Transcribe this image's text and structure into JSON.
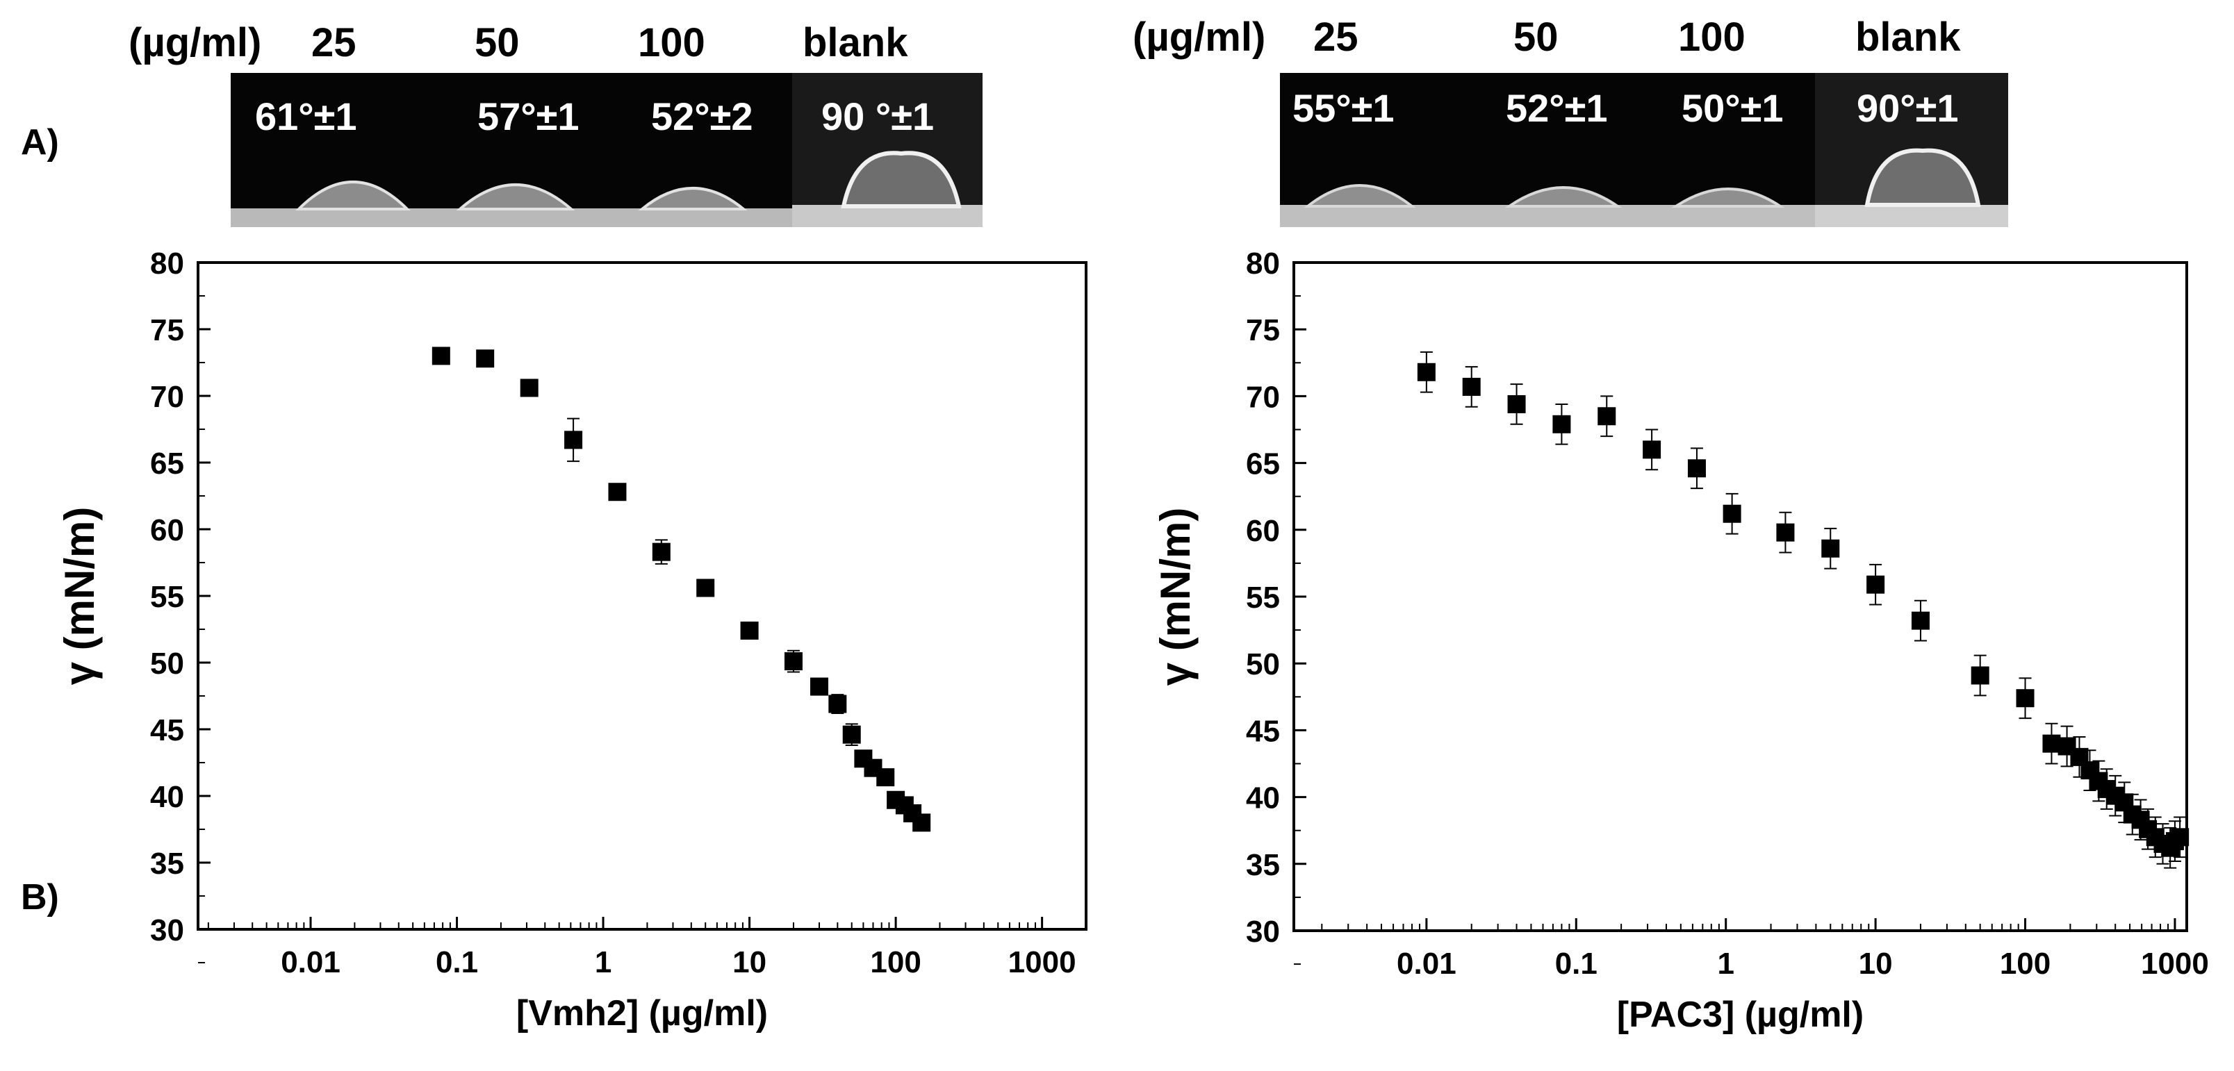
{
  "panel_labels": {
    "a": "A)",
    "b": "B)"
  },
  "droplets": [
    {
      "conc_unit": "(µg/ml)",
      "labels": [
        "25",
        "50",
        "100",
        "blank"
      ],
      "angles": [
        "61°±1",
        "57°±1",
        "52°±2",
        "90 °±1"
      ]
    },
    {
      "conc_unit": "(µg/ml)",
      "labels": [
        "25",
        "50",
        "100",
        "blank"
      ],
      "angles": [
        "55°±1",
        "52°±1",
        "50°±1",
        "90°±1"
      ]
    }
  ],
  "chart_data": [
    {
      "type": "scatter",
      "title": "",
      "xlabel": "[Vmh2] (µg/ml)",
      "ylabel": "γ (mN/m)",
      "xscale": "log",
      "xlim": [
        0.0017,
        2000
      ],
      "ylim": [
        30,
        80
      ],
      "xticks": [
        0.01,
        0.1,
        1,
        10,
        100,
        1000
      ],
      "xtick_labels": [
        "0.01",
        "0.1",
        "1",
        "10",
        "100",
        "1000"
      ],
      "yticks": [
        30,
        35,
        40,
        45,
        50,
        55,
        60,
        65,
        70,
        75,
        80
      ],
      "marker": "square",
      "points": [
        {
          "x": 0.078,
          "y": 73.0,
          "err": 0.3
        },
        {
          "x": 0.156,
          "y": 72.8,
          "err": 0.3
        },
        {
          "x": 0.3125,
          "y": 70.6,
          "err": 0.4
        },
        {
          "x": 0.625,
          "y": 66.7,
          "err": 1.6
        },
        {
          "x": 1.25,
          "y": 62.8,
          "err": 0.3
        },
        {
          "x": 2.5,
          "y": 58.3,
          "err": 0.9
        },
        {
          "x": 5,
          "y": 55.6,
          "err": 0.3
        },
        {
          "x": 10,
          "y": 52.4,
          "err": 0.3
        },
        {
          "x": 20,
          "y": 50.1,
          "err": 0.8
        },
        {
          "x": 30,
          "y": 48.2,
          "err": 0.3
        },
        {
          "x": 40,
          "y": 46.9,
          "err": 0.7
        },
        {
          "x": 50,
          "y": 44.6,
          "err": 0.8
        },
        {
          "x": 60,
          "y": 42.8,
          "err": 0.3
        },
        {
          "x": 70,
          "y": 42.1,
          "err": 0.3
        },
        {
          "x": 85,
          "y": 41.4,
          "err": 0.3
        },
        {
          "x": 100,
          "y": 39.7,
          "err": 0.3
        },
        {
          "x": 115,
          "y": 39.3,
          "err": 0.3
        },
        {
          "x": 130,
          "y": 38.7,
          "err": 0.3
        },
        {
          "x": 150,
          "y": 38.0,
          "err": 0.3
        }
      ]
    },
    {
      "type": "scatter",
      "title": "",
      "xlabel": "[PAC3] (µg/ml)",
      "ylabel": "γ (mN/m)",
      "xscale": "log",
      "xlim": [
        0.0013,
        1200
      ],
      "ylim": [
        30,
        80
      ],
      "xticks": [
        0.01,
        0.1,
        1,
        10,
        100,
        1000
      ],
      "xtick_labels": [
        "0.01",
        "0.1",
        "1",
        "10",
        "100",
        "1000"
      ],
      "yticks": [
        30,
        35,
        40,
        45,
        50,
        55,
        60,
        65,
        70,
        75,
        80
      ],
      "marker": "square",
      "points": [
        {
          "x": 0.01,
          "y": 71.8,
          "err": 1.5
        },
        {
          "x": 0.02,
          "y": 70.7,
          "err": 1.5
        },
        {
          "x": 0.04,
          "y": 69.4,
          "err": 1.5
        },
        {
          "x": 0.08,
          "y": 67.9,
          "err": 1.5
        },
        {
          "x": 0.16,
          "y": 68.5,
          "err": 1.5
        },
        {
          "x": 0.32,
          "y": 66.0,
          "err": 1.5
        },
        {
          "x": 0.64,
          "y": 64.6,
          "err": 1.5
        },
        {
          "x": 1.1,
          "y": 61.2,
          "err": 1.5
        },
        {
          "x": 2.5,
          "y": 59.8,
          "err": 1.5
        },
        {
          "x": 5,
          "y": 58.6,
          "err": 1.5
        },
        {
          "x": 10,
          "y": 55.9,
          "err": 1.5
        },
        {
          "x": 20,
          "y": 53.2,
          "err": 1.5
        },
        {
          "x": 50,
          "y": 49.1,
          "err": 1.5
        },
        {
          "x": 100,
          "y": 47.4,
          "err": 1.5
        },
        {
          "x": 150,
          "y": 44.0,
          "err": 1.5
        },
        {
          "x": 190,
          "y": 43.8,
          "err": 1.5
        },
        {
          "x": 230,
          "y": 43.0,
          "err": 1.5
        },
        {
          "x": 270,
          "y": 42.0,
          "err": 1.5
        },
        {
          "x": 310,
          "y": 41.2,
          "err": 1.5
        },
        {
          "x": 350,
          "y": 40.6,
          "err": 1.5
        },
        {
          "x": 400,
          "y": 40.1,
          "err": 1.5
        },
        {
          "x": 460,
          "y": 39.6,
          "err": 1.5
        },
        {
          "x": 520,
          "y": 38.7,
          "err": 1.5
        },
        {
          "x": 590,
          "y": 38.3,
          "err": 1.5
        },
        {
          "x": 660,
          "y": 37.6,
          "err": 1.5
        },
        {
          "x": 740,
          "y": 37.0,
          "err": 1.5
        },
        {
          "x": 830,
          "y": 36.5,
          "err": 1.5
        },
        {
          "x": 930,
          "y": 36.2,
          "err": 1.5
        },
        {
          "x": 1000,
          "y": 36.7,
          "err": 1.5
        },
        {
          "x": 1080,
          "y": 37.0,
          "err": 1.5
        }
      ]
    }
  ]
}
